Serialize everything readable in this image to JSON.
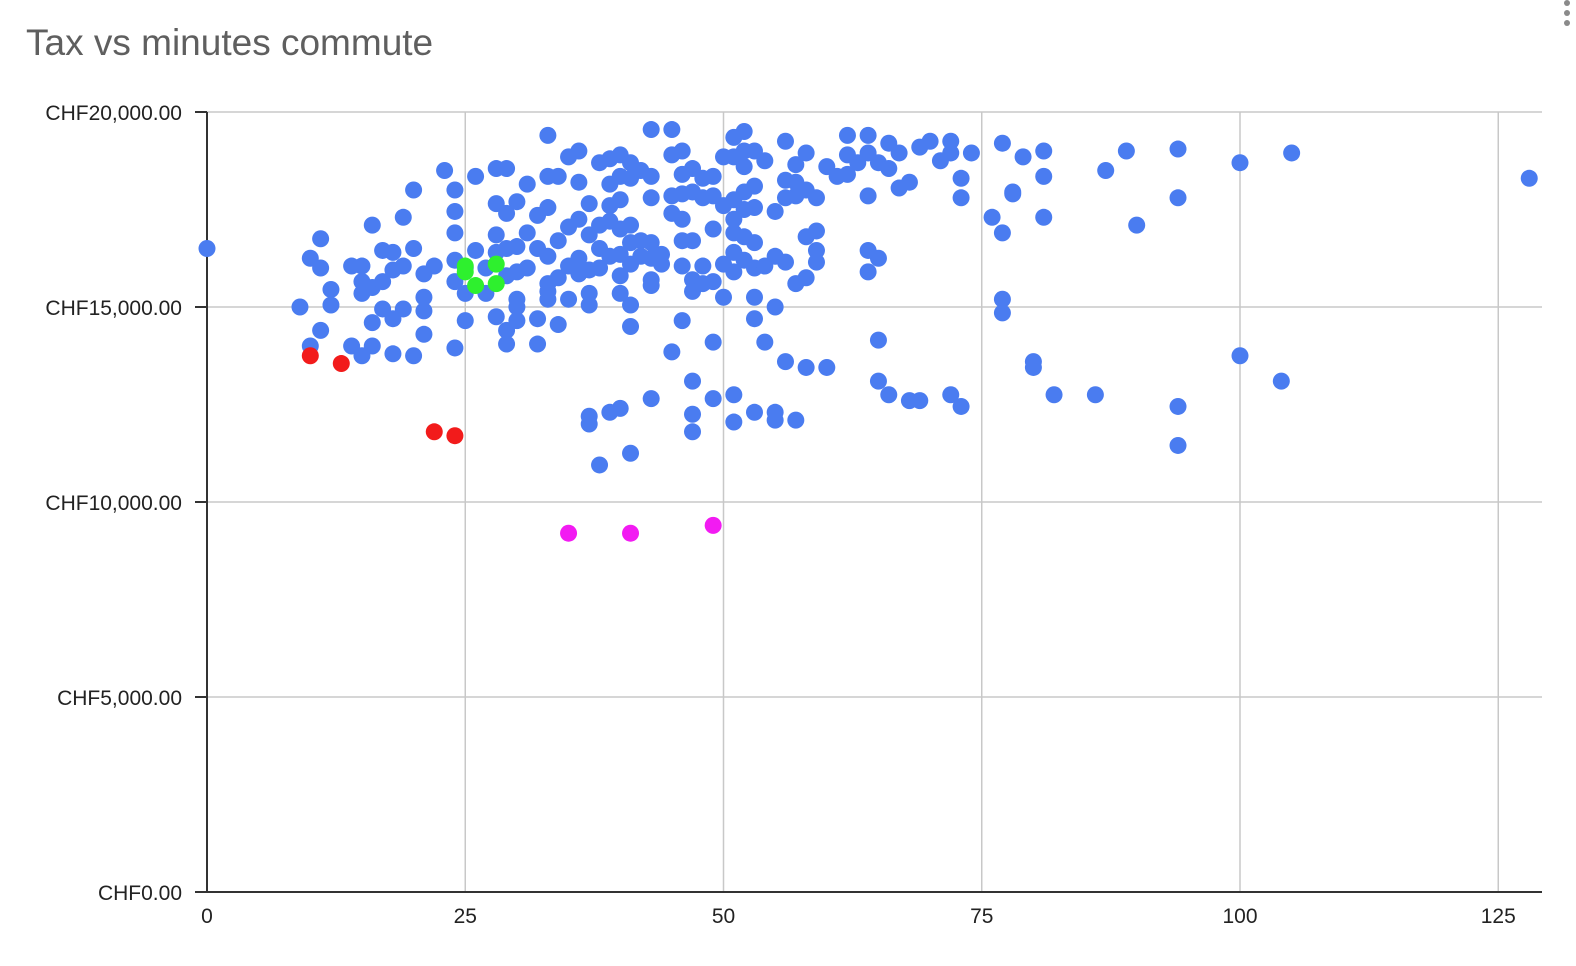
{
  "chart_data": {
    "type": "scatter",
    "title": "Tax vs minutes commute",
    "xlabel": "",
    "ylabel": "",
    "xlim": [
      0,
      130
    ],
    "ylim": [
      0,
      20000
    ],
    "x_ticks": [
      0,
      25,
      50,
      75,
      100,
      125
    ],
    "x_tick_labels": [
      "0",
      "25",
      "50",
      "75",
      "100",
      "125"
    ],
    "y_ticks": [
      0,
      5000,
      10000,
      15000,
      20000
    ],
    "y_tick_labels": [
      "CHF0.00",
      "CHF5,000.00",
      "CHF10,000.00",
      "CHF15,000.00",
      "CHF20,000.00"
    ],
    "grid": true,
    "legend": "none",
    "colors": {
      "blue": "#4a7cf0",
      "red": "#f21b1b",
      "green": "#2ef02e",
      "magenta": "#f21bf2",
      "grid": "#c8c8c8",
      "axis": "#333333"
    },
    "series": [
      {
        "color": "#4a7cf0",
        "points": [
          [
            0,
            16500
          ],
          [
            9,
            15000
          ],
          [
            10,
            16250
          ],
          [
            10,
            14000
          ],
          [
            11,
            16750
          ],
          [
            11,
            16000
          ],
          [
            11,
            14400
          ],
          [
            12,
            15450
          ],
          [
            12,
            15050
          ],
          [
            14,
            16050
          ],
          [
            14,
            14000
          ],
          [
            15,
            16050
          ],
          [
            15,
            15650
          ],
          [
            15,
            15350
          ],
          [
            15,
            13750
          ],
          [
            16,
            17100
          ],
          [
            16,
            15500
          ],
          [
            16,
            14600
          ],
          [
            16,
            14000
          ],
          [
            17,
            16450
          ],
          [
            17,
            15650
          ],
          [
            17,
            14950
          ],
          [
            18,
            16400
          ],
          [
            18,
            15950
          ],
          [
            18,
            14700
          ],
          [
            18,
            13800
          ],
          [
            19,
            17300
          ],
          [
            19,
            16050
          ],
          [
            19,
            14950
          ],
          [
            20,
            18000
          ],
          [
            20,
            16500
          ],
          [
            20,
            13750
          ],
          [
            21,
            15850
          ],
          [
            21,
            15250
          ],
          [
            21,
            14900
          ],
          [
            21,
            14300
          ],
          [
            22,
            16050
          ],
          [
            23,
            18500
          ],
          [
            24,
            18000
          ],
          [
            24,
            17450
          ],
          [
            24,
            16900
          ],
          [
            24,
            16200
          ],
          [
            24,
            15650
          ],
          [
            24,
            13950
          ],
          [
            25,
            16000
          ],
          [
            25,
            15350
          ],
          [
            25,
            14650
          ],
          [
            26,
            18350
          ],
          [
            26,
            16450
          ],
          [
            27,
            15350
          ],
          [
            27,
            16000
          ],
          [
            28,
            18550
          ],
          [
            28,
            17650
          ],
          [
            28,
            16850
          ],
          [
            28,
            16400
          ],
          [
            28,
            14750
          ],
          [
            29,
            18550
          ],
          [
            29,
            17400
          ],
          [
            29,
            16500
          ],
          [
            29,
            15800
          ],
          [
            29,
            14400
          ],
          [
            29,
            14050
          ],
          [
            30,
            17700
          ],
          [
            30,
            16550
          ],
          [
            30,
            15900
          ],
          [
            30,
            15200
          ],
          [
            30,
            15000
          ],
          [
            30,
            14650
          ],
          [
            31,
            18150
          ],
          [
            31,
            16900
          ],
          [
            31,
            16000
          ],
          [
            32,
            17350
          ],
          [
            32,
            16500
          ],
          [
            32,
            14700
          ],
          [
            32,
            14050
          ],
          [
            33,
            19400
          ],
          [
            33,
            18350
          ],
          [
            33,
            17550
          ],
          [
            33,
            16300
          ],
          [
            33,
            15600
          ],
          [
            33,
            15400
          ],
          [
            33,
            15200
          ],
          [
            34,
            18350
          ],
          [
            34,
            16700
          ],
          [
            34,
            15750
          ],
          [
            34,
            14550
          ],
          [
            35,
            18850
          ],
          [
            35,
            17050
          ],
          [
            35,
            16050
          ],
          [
            35,
            15200
          ],
          [
            36,
            19000
          ],
          [
            36,
            18200
          ],
          [
            36,
            17250
          ],
          [
            36,
            16250
          ],
          [
            36,
            15850
          ],
          [
            37,
            17650
          ],
          [
            37,
            16850
          ],
          [
            37,
            15950
          ],
          [
            37,
            15350
          ],
          [
            37,
            15050
          ],
          [
            37,
            12200
          ],
          [
            37,
            12000
          ],
          [
            38,
            18700
          ],
          [
            38,
            17100
          ],
          [
            38,
            16500
          ],
          [
            38,
            16000
          ],
          [
            38,
            10950
          ],
          [
            39,
            18800
          ],
          [
            39,
            18150
          ],
          [
            39,
            17600
          ],
          [
            39,
            17200
          ],
          [
            39,
            16300
          ],
          [
            39,
            12300
          ],
          [
            40,
            18900
          ],
          [
            40,
            18350
          ],
          [
            40,
            17750
          ],
          [
            40,
            17000
          ],
          [
            40,
            16350
          ],
          [
            40,
            15800
          ],
          [
            40,
            15350
          ],
          [
            40,
            12400
          ],
          [
            41,
            18700
          ],
          [
            41,
            18300
          ],
          [
            41,
            17100
          ],
          [
            41,
            16650
          ],
          [
            41,
            16100
          ],
          [
            41,
            15050
          ],
          [
            41,
            14500
          ],
          [
            41,
            11250
          ],
          [
            42,
            18500
          ],
          [
            42,
            16700
          ],
          [
            42,
            16300
          ],
          [
            43,
            19550
          ],
          [
            43,
            18350
          ],
          [
            43,
            17800
          ],
          [
            43,
            16650
          ],
          [
            43,
            16250
          ],
          [
            43,
            15700
          ],
          [
            43,
            15550
          ],
          [
            43,
            12650
          ],
          [
            44,
            16350
          ],
          [
            44,
            16100
          ],
          [
            45,
            19550
          ],
          [
            45,
            18900
          ],
          [
            45,
            17850
          ],
          [
            45,
            17400
          ],
          [
            45,
            13850
          ],
          [
            46,
            19000
          ],
          [
            46,
            18400
          ],
          [
            46,
            17900
          ],
          [
            46,
            17250
          ],
          [
            46,
            16700
          ],
          [
            46,
            16050
          ],
          [
            46,
            14650
          ],
          [
            47,
            18550
          ],
          [
            47,
            17950
          ],
          [
            47,
            16700
          ],
          [
            47,
            15700
          ],
          [
            47,
            15400
          ],
          [
            47,
            13100
          ],
          [
            47,
            12250
          ],
          [
            47,
            11800
          ],
          [
            48,
            18300
          ],
          [
            48,
            17800
          ],
          [
            48,
            16050
          ],
          [
            48,
            15600
          ],
          [
            49,
            18350
          ],
          [
            49,
            17850
          ],
          [
            49,
            17000
          ],
          [
            49,
            15650
          ],
          [
            49,
            14100
          ],
          [
            49,
            12650
          ],
          [
            50,
            18850
          ],
          [
            50,
            17600
          ],
          [
            50,
            16100
          ],
          [
            50,
            15250
          ],
          [
            51,
            19350
          ],
          [
            51,
            18850
          ],
          [
            51,
            17750
          ],
          [
            51,
            17250
          ],
          [
            51,
            16900
          ],
          [
            51,
            16400
          ],
          [
            51,
            15900
          ],
          [
            51,
            12750
          ],
          [
            51,
            12050
          ],
          [
            52,
            19500
          ],
          [
            52,
            19000
          ],
          [
            52,
            18600
          ],
          [
            52,
            17950
          ],
          [
            52,
            17500
          ],
          [
            52,
            16800
          ],
          [
            52,
            16200
          ],
          [
            53,
            19000
          ],
          [
            53,
            18100
          ],
          [
            53,
            17550
          ],
          [
            53,
            16650
          ],
          [
            53,
            16000
          ],
          [
            53,
            15250
          ],
          [
            53,
            14700
          ],
          [
            53,
            12300
          ],
          [
            54,
            18750
          ],
          [
            54,
            16050
          ],
          [
            54,
            14100
          ],
          [
            55,
            17450
          ],
          [
            55,
            16300
          ],
          [
            55,
            15000
          ],
          [
            55,
            12300
          ],
          [
            55,
            12100
          ],
          [
            56,
            19250
          ],
          [
            56,
            18250
          ],
          [
            56,
            17800
          ],
          [
            56,
            16150
          ],
          [
            56,
            13600
          ],
          [
            57,
            18650
          ],
          [
            57,
            18200
          ],
          [
            57,
            17850
          ],
          [
            57,
            15600
          ],
          [
            57,
            12100
          ],
          [
            58,
            18950
          ],
          [
            58,
            18000
          ],
          [
            58,
            16800
          ],
          [
            58,
            15750
          ],
          [
            58,
            13450
          ],
          [
            59,
            17800
          ],
          [
            59,
            16950
          ],
          [
            59,
            16450
          ],
          [
            59,
            16150
          ],
          [
            60,
            18600
          ],
          [
            60,
            13450
          ],
          [
            61,
            18350
          ],
          [
            62,
            19400
          ],
          [
            62,
            18900
          ],
          [
            62,
            18400
          ],
          [
            63,
            18700
          ],
          [
            64,
            19400
          ],
          [
            64,
            18950
          ],
          [
            64,
            17850
          ],
          [
            64,
            16450
          ],
          [
            64,
            15900
          ],
          [
            65,
            18700
          ],
          [
            65,
            16250
          ],
          [
            65,
            14150
          ],
          [
            65,
            13100
          ],
          [
            66,
            19200
          ],
          [
            66,
            18550
          ],
          [
            66,
            12750
          ],
          [
            67,
            18950
          ],
          [
            67,
            18050
          ],
          [
            68,
            18200
          ],
          [
            68,
            12600
          ],
          [
            69,
            19100
          ],
          [
            69,
            12600
          ],
          [
            70,
            19250
          ],
          [
            71,
            18750
          ],
          [
            72,
            19250
          ],
          [
            72,
            18950
          ],
          [
            72,
            12750
          ],
          [
            73,
            18300
          ],
          [
            73,
            17800
          ],
          [
            73,
            12450
          ],
          [
            74,
            18950
          ],
          [
            76,
            17300
          ],
          [
            77,
            19200
          ],
          [
            77,
            16900
          ],
          [
            77,
            15200
          ],
          [
            77,
            14850
          ],
          [
            78,
            17950
          ],
          [
            78,
            17900
          ],
          [
            79,
            18850
          ],
          [
            80,
            13600
          ],
          [
            80,
            13450
          ],
          [
            81,
            19000
          ],
          [
            81,
            18350
          ],
          [
            81,
            17300
          ],
          [
            82,
            12750
          ],
          [
            86,
            12750
          ],
          [
            87,
            18500
          ],
          [
            89,
            19000
          ],
          [
            90,
            17100
          ],
          [
            94,
            19050
          ],
          [
            94,
            17800
          ],
          [
            94,
            12450
          ],
          [
            94,
            11450
          ],
          [
            100,
            18700
          ],
          [
            100,
            13750
          ],
          [
            104,
            13100
          ],
          [
            105,
            18950
          ],
          [
            128,
            18300
          ]
        ]
      },
      {
        "color": "#f21b1b",
        "points": [
          [
            10,
            13750
          ],
          [
            13,
            13550
          ],
          [
            22,
            11800
          ],
          [
            24,
            11700
          ]
        ]
      },
      {
        "color": "#2ef02e",
        "points": [
          [
            25,
            16050
          ],
          [
            25,
            15900
          ],
          [
            26,
            15550
          ],
          [
            28,
            16100
          ],
          [
            28,
            15600
          ]
        ]
      },
      {
        "color": "#f21bf2",
        "points": [
          [
            35,
            9200
          ],
          [
            41,
            9200
          ],
          [
            49,
            9400
          ]
        ]
      }
    ]
  }
}
